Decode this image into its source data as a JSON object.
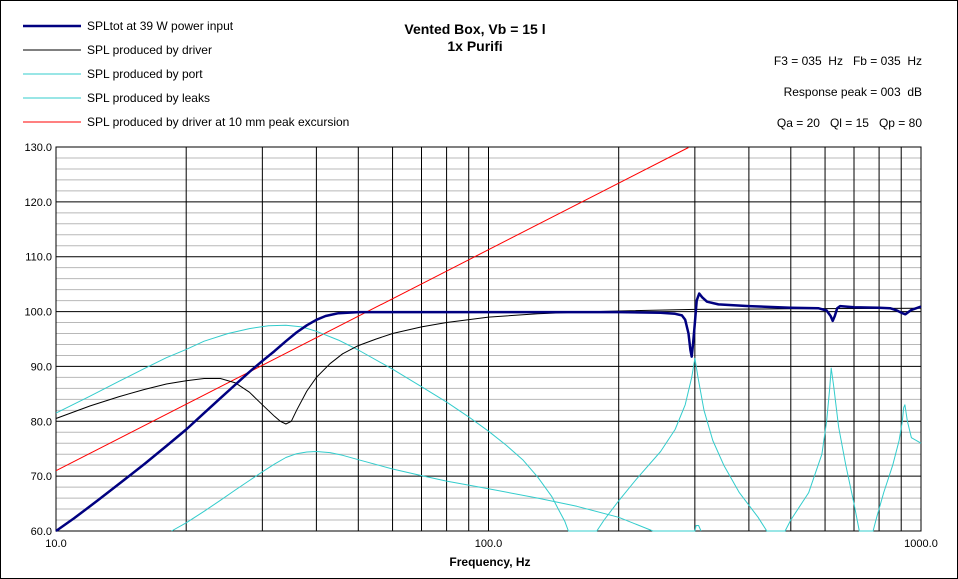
{
  "chart_data": {
    "type": "line",
    "title": "Vented Box, Vb = 15 l",
    "subtitle": "1x Purifi",
    "xlabel": "Frequency, Hz",
    "ylabel": "",
    "x_scale": "log",
    "xlim": [
      10,
      1000
    ],
    "ylim": [
      60,
      130
    ],
    "x_tick_labels": [
      "10.0",
      "100.0",
      "1000.0"
    ],
    "y_tick_labels": [
      "60.0",
      "70.0",
      "80.0",
      "90.0",
      "100.0",
      "110.0",
      "120.0",
      "130.0"
    ],
    "grid": true,
    "legend_position": "top-left",
    "annotations": [
      "F3 = 035  Hz   Fb = 035  Hz",
      "Response peak = 003  dB",
      "Qa = 20   Ql = 15   Qp = 80"
    ],
    "series": [
      {
        "name": "SPLtot at 39 W power input",
        "color": "#000080",
        "points": [
          [
            10,
            60
          ],
          [
            11,
            62.3
          ],
          [
            12.5,
            65.6
          ],
          [
            14,
            68.6
          ],
          [
            16,
            72.2
          ],
          [
            18,
            75.5
          ],
          [
            20,
            78.5
          ],
          [
            22,
            81.5
          ],
          [
            24,
            84.2
          ],
          [
            26,
            86.7
          ],
          [
            28,
            89
          ],
          [
            30,
            91
          ],
          [
            32,
            92.8
          ],
          [
            34,
            94.6
          ],
          [
            36,
            96.2
          ],
          [
            38,
            97.5
          ],
          [
            40,
            98.5
          ],
          [
            42,
            99.2
          ],
          [
            45,
            99.7
          ],
          [
            50,
            99.9
          ],
          [
            60,
            99.9
          ],
          [
            100,
            99.9
          ],
          [
            150,
            99.9
          ],
          [
            200,
            99.9
          ],
          [
            250,
            99.8
          ],
          [
            270,
            99.6
          ],
          [
            280,
            99.3
          ],
          [
            285,
            98.5
          ],
          [
            290,
            96
          ],
          [
            293,
            93
          ],
          [
            295,
            91.8
          ],
          [
            297,
            94
          ],
          [
            300,
            98
          ],
          [
            303,
            102
          ],
          [
            307,
            103.3
          ],
          [
            312,
            102.6
          ],
          [
            320,
            101.8
          ],
          [
            340,
            101.3
          ],
          [
            400,
            101
          ],
          [
            500,
            100.7
          ],
          [
            580,
            100.6
          ],
          [
            605,
            100.2
          ],
          [
            618,
            99.2
          ],
          [
            625,
            98.3
          ],
          [
            632,
            99.2
          ],
          [
            640,
            100.6
          ],
          [
            650,
            101
          ],
          [
            700,
            100.8
          ],
          [
            800,
            100.7
          ],
          [
            850,
            100.6
          ],
          [
            880,
            100.2
          ],
          [
            900,
            99.8
          ],
          [
            920,
            99.5
          ],
          [
            950,
            100.3
          ],
          [
            1000,
            100.9
          ]
        ]
      },
      {
        "name": "SPL produced by driver",
        "color": "#000000",
        "points": [
          [
            10,
            80.5
          ],
          [
            12,
            82.8
          ],
          [
            14,
            84.5
          ],
          [
            16,
            85.8
          ],
          [
            18,
            86.8
          ],
          [
            20,
            87.4
          ],
          [
            22,
            87.8
          ],
          [
            24,
            87.8
          ],
          [
            26,
            87
          ],
          [
            28,
            85.3
          ],
          [
            30,
            83
          ],
          [
            32,
            80.9
          ],
          [
            33,
            80
          ],
          [
            34,
            79.5
          ],
          [
            35,
            80
          ],
          [
            36,
            82
          ],
          [
            38,
            85.5
          ],
          [
            40,
            88
          ],
          [
            43,
            90.5
          ],
          [
            46,
            92.3
          ],
          [
            50,
            93.8
          ],
          [
            55,
            95
          ],
          [
            60,
            96
          ],
          [
            70,
            97.2
          ],
          [
            80,
            98
          ],
          [
            100,
            99
          ],
          [
            130,
            99.6
          ],
          [
            160,
            99.9
          ],
          [
            200,
            100.1
          ],
          [
            300,
            100.4
          ],
          [
            500,
            100.5
          ],
          [
            1000,
            100.6
          ]
        ]
      },
      {
        "name": "SPL produced by port",
        "color": "#33CCCC",
        "points": [
          [
            10,
            81.5
          ],
          [
            12,
            84.6
          ],
          [
            14,
            87.3
          ],
          [
            16,
            89.6
          ],
          [
            18,
            91.6
          ],
          [
            20,
            93.1
          ],
          [
            22,
            94.6
          ],
          [
            25,
            96
          ],
          [
            28,
            96.9
          ],
          [
            31,
            97.4
          ],
          [
            34,
            97.5
          ],
          [
            37,
            97.2
          ],
          [
            40,
            96.4
          ],
          [
            45,
            94.8
          ],
          [
            50,
            93
          ],
          [
            60,
            89.5
          ],
          [
            70,
            86.3
          ],
          [
            80,
            83.5
          ],
          [
            90,
            80.8
          ],
          [
            100,
            78.2
          ],
          [
            110,
            75.6
          ],
          [
            120,
            73
          ],
          [
            130,
            69.8
          ],
          [
            140,
            66.3
          ],
          [
            145,
            64
          ],
          [
            150,
            61.8
          ],
          [
            153,
            60
          ],
          [
            178,
            60
          ],
          [
            185,
            62
          ],
          [
            200,
            65.5
          ],
          [
            220,
            69.5
          ],
          [
            250,
            74.5
          ],
          [
            270,
            78.5
          ],
          [
            285,
            83
          ],
          [
            295,
            88
          ],
          [
            300,
            91.5
          ],
          [
            305,
            88
          ],
          [
            315,
            82
          ],
          [
            330,
            76.5
          ],
          [
            350,
            72
          ],
          [
            380,
            67
          ],
          [
            420,
            62.5
          ],
          [
            440,
            60
          ],
          [
            485,
            60
          ],
          [
            500,
            62
          ],
          [
            550,
            67
          ],
          [
            590,
            74
          ],
          [
            605,
            80
          ],
          [
            615,
            86
          ],
          [
            620,
            89.7
          ],
          [
            628,
            86.5
          ],
          [
            645,
            79
          ],
          [
            670,
            72
          ],
          [
            700,
            65
          ],
          [
            720,
            60
          ],
          [
            775,
            60
          ],
          [
            790,
            62.5
          ],
          [
            820,
            67
          ],
          [
            860,
            72
          ],
          [
            890,
            76.5
          ],
          [
            905,
            80
          ],
          [
            912,
            82.5
          ],
          [
            918,
            83
          ],
          [
            930,
            80
          ],
          [
            950,
            77
          ],
          [
            1000,
            76
          ]
        ]
      },
      {
        "name": "SPL produced by leaks",
        "color": "#33CCCC",
        "points": [
          [
            18.5,
            60
          ],
          [
            20,
            61.5
          ],
          [
            22,
            63.6
          ],
          [
            24,
            65.6
          ],
          [
            26,
            67.5
          ],
          [
            28,
            69.2
          ],
          [
            30,
            70.8
          ],
          [
            32,
            72.2
          ],
          [
            34,
            73.4
          ],
          [
            36,
            74.1
          ],
          [
            38,
            74.4
          ],
          [
            40,
            74.5
          ],
          [
            43,
            74.3
          ],
          [
            46,
            73.8
          ],
          [
            50,
            73
          ],
          [
            60,
            71.3
          ],
          [
            70,
            70.1
          ],
          [
            80,
            69.1
          ],
          [
            100,
            67.7
          ],
          [
            130,
            66
          ],
          [
            160,
            64.5
          ],
          [
            200,
            62.5
          ],
          [
            240,
            60
          ],
          [
            300,
            60
          ],
          [
            302,
            61
          ],
          [
            306,
            61
          ],
          [
            310,
            60
          ]
        ]
      },
      {
        "name": "SPL produced by driver at 10 mm peak excursion",
        "color": "#FF0000",
        "points": [
          [
            10,
            71
          ],
          [
            290,
            129.9
          ]
        ]
      }
    ]
  }
}
